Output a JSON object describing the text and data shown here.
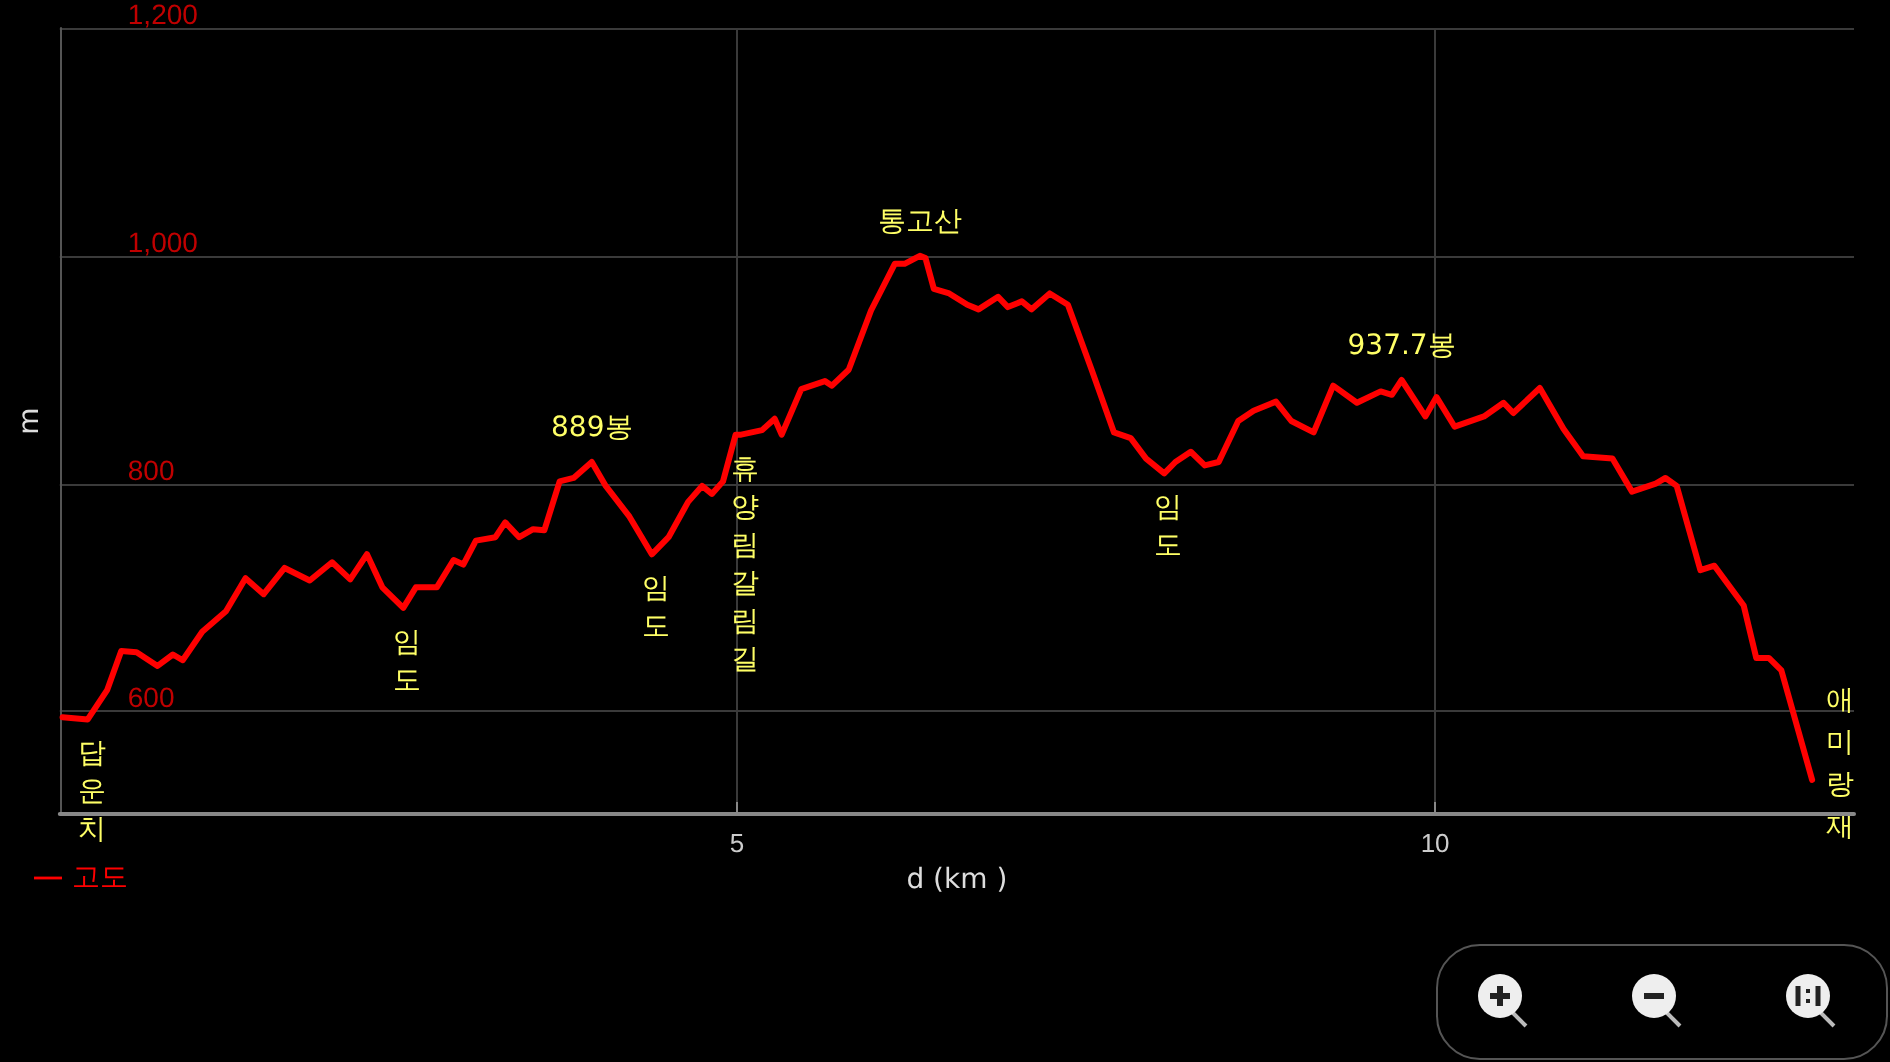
{
  "chart_data": {
    "type": "line",
    "xlabel": "d (km )",
    "ylabel": "m",
    "xlim": [
      0.15,
      13
    ],
    "xticks": [
      5,
      10
    ],
    "ylim": [
      510,
      1200
    ],
    "yticks": [
      600,
      800,
      {
        "value": 1000,
        "label": "1,000"
      },
      {
        "value": 1200,
        "label": "1,200"
      }
    ],
    "grid": true,
    "legend": "bottom left",
    "marker": "none",
    "line_style": "solid",
    "series": [
      {
        "name": "고도",
        "color": "#ff0000",
        "x": [
          0.17,
          0.35,
          0.49,
          0.59,
          0.7,
          0.85,
          0.96,
          1.03,
          1.17,
          1.34,
          1.48,
          1.61,
          1.76,
          1.94,
          2.1,
          2.23,
          2.35,
          2.46,
          2.61,
          2.7,
          2.85,
          2.97,
          3.04,
          3.13,
          3.27,
          3.34,
          3.44,
          3.54,
          3.62,
          3.73,
          3.83,
          3.96,
          4.06,
          4.23,
          4.39,
          4.51,
          4.65,
          4.75,
          4.82,
          4.9,
          4.99,
          5.03,
          5.18,
          5.27,
          5.32,
          5.46,
          5.63,
          5.68,
          5.8,
          5.96,
          6.13,
          6.2,
          6.31,
          6.35,
          6.41,
          6.52,
          6.65,
          6.73,
          6.87,
          6.94,
          7.04,
          7.11,
          7.24,
          7.37,
          7.54,
          7.7,
          7.82,
          7.93,
          8.06,
          8.14,
          8.25,
          8.35,
          8.45,
          8.59,
          8.7,
          8.86,
          8.97,
          9.13,
          9.27,
          9.44,
          9.61,
          9.69,
          9.76,
          9.93,
          10.01,
          10.14,
          10.35,
          10.49,
          10.56,
          10.75,
          10.92,
          11.06,
          11.27,
          11.41,
          11.58,
          11.65,
          11.73,
          11.9,
          12.0,
          12.21,
          12.3,
          12.39,
          12.48,
          12.7
        ],
        "values": [
          595,
          593,
          619,
          653,
          652,
          640,
          650,
          645,
          670,
          688,
          717,
          703,
          726,
          715,
          731,
          716,
          738,
          709,
          691,
          709,
          709,
          733,
          729,
          750,
          753,
          766,
          753,
          760,
          759,
          802,
          805,
          819,
          798,
          771,
          738,
          753,
          784,
          798,
          791,
          802,
          843,
          843,
          847,
          857,
          843,
          883,
          890,
          886,
          900,
          952,
          993,
          993,
          1000,
          998,
          971,
          967,
          957,
          953,
          964,
          955,
          960,
          953,
          967,
          957,
          900,
          845,
          840,
          822,
          809,
          819,
          828,
          816,
          819,
          855,
          864,
          872,
          855,
          845,
          886,
          871,
          881,
          878,
          891,
          859,
          876,
          850,
          859,
          871,
          862,
          884,
          848,
          824,
          822,
          793,
          800,
          805,
          798,
          724,
          728,
          693,
          647,
          647,
          636,
          540
        ]
      }
    ],
    "annotations": [
      {
        "text": "답운치",
        "x": 0.35,
        "y": 593
      },
      {
        "text": "임도",
        "x": 2.61,
        "y": 691
      },
      {
        "text": "889봉",
        "x": 3.96,
        "y": 819
      },
      {
        "text": "임도",
        "x": 4.39,
        "y": 738
      },
      {
        "text": "휴양림갈림길",
        "x": 5.03,
        "y": 843
      },
      {
        "text": "통고산",
        "x": 6.31,
        "y": 1000
      },
      {
        "text": "임도",
        "x": 8.06,
        "y": 809
      },
      {
        "text": "937.7봉",
        "x": 9.76,
        "y": 891
      },
      {
        "text": "애미랑재",
        "x": 12.7,
        "y": 540
      }
    ]
  }
}
